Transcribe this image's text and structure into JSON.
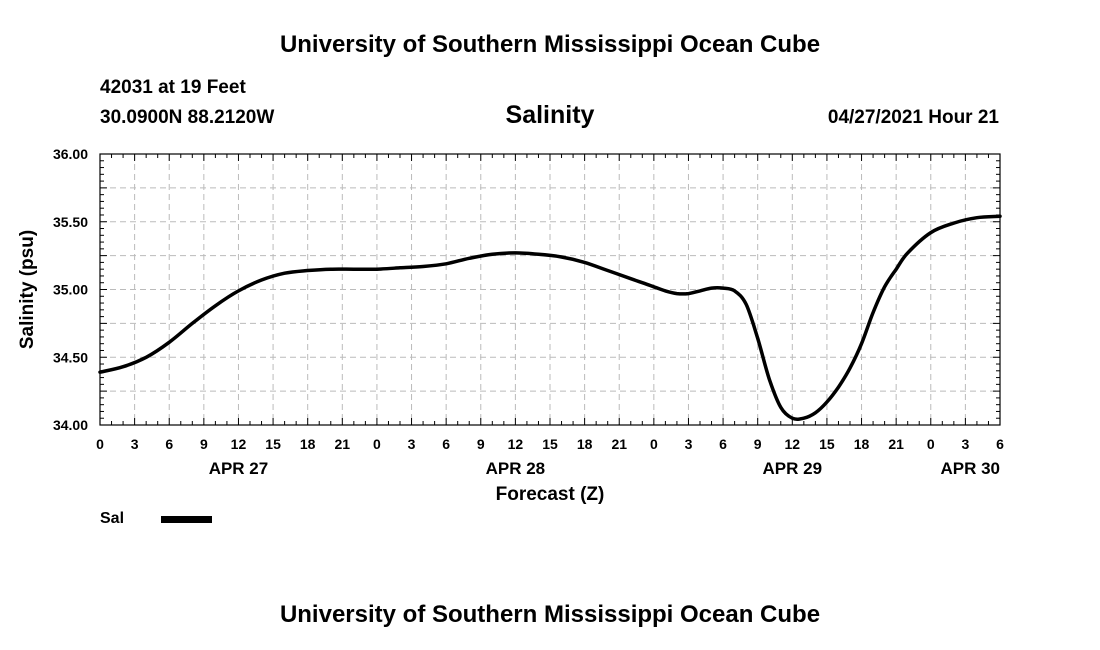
{
  "header": {
    "title": "University of Southern Mississippi Ocean Cube",
    "station_line": "42031 at 19 Feet",
    "coord_line": "30.0900N  88.2120W",
    "chart_name": "Salinity",
    "timestamp": "04/27/2021 Hour 21"
  },
  "footer": {
    "title": "University of Southern Mississippi Ocean Cube"
  },
  "legend": {
    "label": "Sal",
    "color": "#000000"
  },
  "colors": {
    "line": "#000000",
    "grid": "#bbbbbb",
    "axis": "#000000"
  },
  "chart_data": {
    "type": "line",
    "title": "Salinity",
    "xlabel": "Forecast (Z)",
    "ylabel": "Salinity (psu)",
    "xlim": [
      0,
      78
    ],
    "ylim": [
      34.0,
      36.0
    ],
    "grid": true,
    "x_tick_labels": [
      "0",
      "3",
      "6",
      "9",
      "12",
      "15",
      "18",
      "21",
      "0",
      "3",
      "6",
      "9",
      "12",
      "15",
      "18",
      "21",
      "0",
      "3",
      "6",
      "9",
      "12",
      "15",
      "18",
      "21",
      "0",
      "3",
      "6"
    ],
    "y_ticks": [
      34.0,
      34.5,
      35.0,
      35.5,
      36.0
    ],
    "y_tick_labels": [
      "34.00",
      "34.50",
      "35.00",
      "35.50",
      "36.00"
    ],
    "date_labels": [
      {
        "label": "APR 27",
        "hour": 12
      },
      {
        "label": "APR 28",
        "hour": 36
      },
      {
        "label": "APR 29",
        "hour": 60
      },
      {
        "label": "APR 30",
        "hour": 78
      }
    ],
    "series": [
      {
        "name": "Sal",
        "x": [
          0,
          2,
          4,
          6,
          8,
          10,
          12,
          14,
          16,
          18,
          20,
          22,
          24,
          26,
          28,
          30,
          32,
          34,
          36,
          38,
          40,
          42,
          44,
          46,
          47,
          48,
          49,
          50,
          51,
          52,
          53,
          54,
          55,
          56,
          57,
          58,
          59,
          60,
          61,
          62,
          63,
          64,
          65,
          66,
          67,
          68,
          69,
          70,
          72,
          74,
          76,
          78
        ],
        "values": [
          34.39,
          34.43,
          34.5,
          34.61,
          34.75,
          34.88,
          34.99,
          35.07,
          35.12,
          35.14,
          35.15,
          35.15,
          35.15,
          35.16,
          35.17,
          35.19,
          35.23,
          35.26,
          35.27,
          35.26,
          35.24,
          35.2,
          35.14,
          35.08,
          35.05,
          35.02,
          34.99,
          34.97,
          34.97,
          34.99,
          35.01,
          35.01,
          34.99,
          34.89,
          34.64,
          34.34,
          34.13,
          34.05,
          34.05,
          34.09,
          34.17,
          34.28,
          34.42,
          34.6,
          34.83,
          35.02,
          35.15,
          35.27,
          35.42,
          35.49,
          35.53,
          35.54
        ]
      }
    ]
  }
}
